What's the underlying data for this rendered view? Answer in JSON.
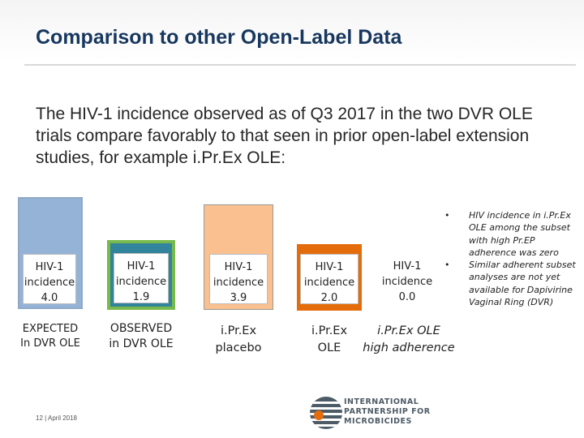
{
  "slide": {
    "title": "Comparison to other Open-Label Data",
    "body": "The HIV-1 incidence observed as of Q3 2017 in the two DVR OLE trials compare favorably to that seen in prior open-label extension studies, for example i.Pr.Ex OLE:"
  },
  "bars": [
    {
      "line1": "HIV-1",
      "line2": "incidence",
      "value": "4.0",
      "cap1": "EXPECTED",
      "cap2": "In DVR OLE",
      "fill": "#95b3d7",
      "edge": "#8fa9c6"
    },
    {
      "line1": "HIV-1",
      "line2": "incidence",
      "value": "1.9",
      "cap1": "OBSERVED",
      "cap2": "in DVR OLE",
      "fill": "#31849b",
      "edge": "#77b94a"
    },
    {
      "line1": "HIV-1",
      "line2": "incidence",
      "value": "3.9",
      "cap1": "i.Pr.Ex",
      "cap2": "placebo",
      "fill": "#fac090",
      "edge": "#999999"
    },
    {
      "line1": "HIV-1",
      "line2": "incidence",
      "value": "2.0",
      "cap1": "i.Pr.Ex",
      "cap2": "OLE",
      "fill": "#e46c0a",
      "edge": "#e46c0a"
    },
    {
      "line1": "HIV-1",
      "line2": "incidence",
      "value": "0.0",
      "cap1": "i.Pr.Ex OLE",
      "cap2": "high adherence",
      "fill": "#ffffff",
      "edge": "#ffffff"
    }
  ],
  "notes": {
    "bullet": "•",
    "items": [
      "HIV incidence in i.Pr.Ex OLE among the subset with high Pr.EP adherence was zero",
      "Similar adherent subset analyses are not yet available for Dapivirine Vaginal Ring (DVR)"
    ]
  },
  "footer": {
    "text": "12 | April 2018"
  },
  "logo": {
    "line1": "INTERNATIONAL",
    "line2": "PARTNERSHIP FOR",
    "line3": "MICROBICIDES",
    "colors": {
      "globe": "#4d5b66",
      "accent": "#e46c0a"
    }
  }
}
